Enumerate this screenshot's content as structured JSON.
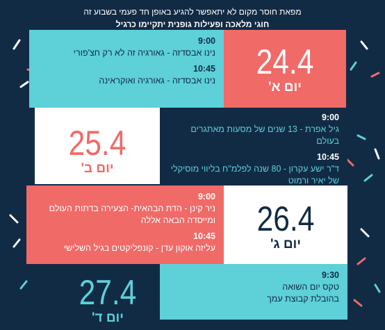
{
  "header": {
    "lines": [
      "מפאת חוסר מקום לא יתאפשר להגיע באופן חד פעמי בשבוע זה",
      "חוגי מלאכה ופעילות גופנית יתקיימו כרגיל"
    ]
  },
  "days": [
    {
      "date": "24.4",
      "day": "יום א'",
      "sessions": [
        {
          "time": "9:00",
          "text": "נינו אבסדזה - גאורגיה זה לא רק חצ'פורי"
        },
        {
          "time": "10:45",
          "text": "נינו אבסדזה - גאורגיה ואוקראינה"
        }
      ]
    },
    {
      "date": "25.4",
      "day": "יום ב'",
      "sessions": [
        {
          "time": "9:00",
          "text": "גיל אפרת - 13 שנים של מסעות מאתגרים בעולם"
        },
        {
          "time": "10:45",
          "text": "ד\"ר ישע עקרון - 80 שנה לפלמ\"ח בליווי מוסיקלי של יאיר ורמוט"
        }
      ]
    },
    {
      "date": "26.4",
      "day": "יום ג'",
      "sessions": [
        {
          "time": "9:00",
          "text": "ניר קינן - הדת הבהאית- הצעירה בדתות העולם ומייסדה הבאה אללה"
        },
        {
          "time": "10:45",
          "text": "עליזה אוקון עדן - קונפליקטים בגיל השלישי"
        }
      ]
    },
    {
      "date": "27.4",
      "day": "יום ד'",
      "sessions": [
        {
          "time": "9:30",
          "text": "טקס יום השואה"
        },
        {
          "time": null,
          "text": "בהובלת קבוצת עמך"
        }
      ]
    }
  ]
}
